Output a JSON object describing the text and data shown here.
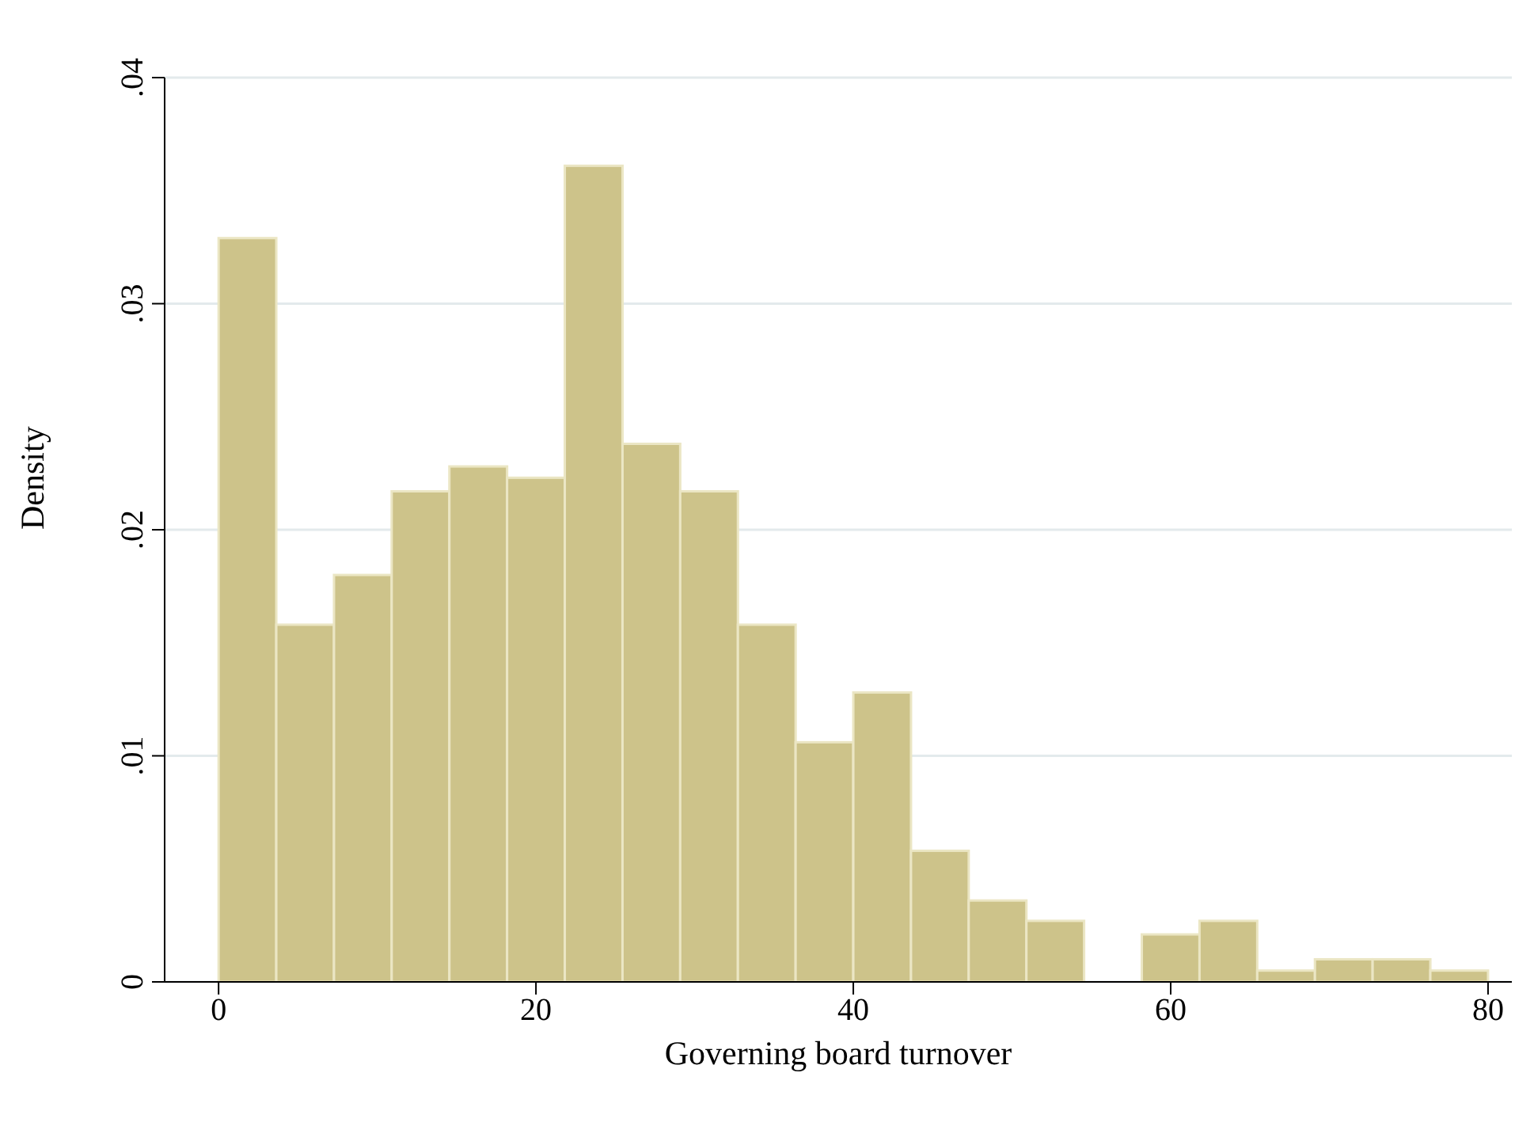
{
  "chart_data": {
    "type": "histogram",
    "xlabel": "Governing board turnover",
    "ylabel": "Density",
    "bins": [
      0,
      3.636,
      7.273,
      10.909,
      14.545,
      18.182,
      21.818,
      25.455,
      29.091,
      32.727,
      36.364,
      40,
      43.636,
      47.273,
      50.909,
      54.545,
      58.182,
      61.818,
      65.455,
      69.091,
      72.727,
      76.364,
      80
    ],
    "values": [
      0.0329,
      0.0158,
      0.018,
      0.0217,
      0.0228,
      0.0223,
      0.0361,
      0.0238,
      0.0217,
      0.0158,
      0.0106,
      0.0128,
      0.0058,
      0.0036,
      0.0027,
      0,
      0.0021,
      0.0027,
      0.0005,
      0.001,
      0.001,
      0.0005
    ],
    "color": "#cdc38a",
    "xlim": [
      -3.4,
      81.5
    ],
    "xticks": [
      0,
      20,
      40,
      60,
      80
    ],
    "ylim": [
      0,
      0.04
    ],
    "yticks": [
      {
        "value": 0,
        "label": "0"
      },
      {
        "value": 0.01,
        "label": ".01"
      },
      {
        "value": 0.02,
        "label": ".02"
      },
      {
        "value": 0.03,
        "label": ".03"
      },
      {
        "value": 0.04,
        "label": ".04"
      }
    ],
    "grid": "y"
  }
}
